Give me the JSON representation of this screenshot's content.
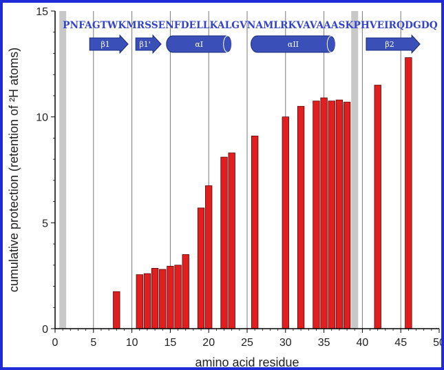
{
  "chart_data": {
    "type": "bar",
    "xlabel": "amino acid residue",
    "ylabel": "cumulative protection (retention of ²H atoms)",
    "xlim": [
      0,
      50
    ],
    "ylim": [
      0,
      15
    ],
    "xticks": [
      0,
      5,
      10,
      15,
      20,
      25,
      30,
      35,
      40,
      45,
      50
    ],
    "yticks": [
      0,
      5,
      10,
      15
    ],
    "grid_x": [
      5,
      10,
      15,
      20,
      25,
      30,
      35,
      40,
      45
    ],
    "shaded_residues": [
      1,
      39
    ],
    "sequence": "PNFAGTWKMRSSENFDELLKALGVNAMLRKVAVAAASKPHVEIRQDGDQ",
    "sequence_start": 1,
    "bar_color": "#e02020",
    "x": [
      8,
      11,
      12,
      13,
      14,
      15,
      16,
      17,
      19,
      20,
      22,
      23,
      26,
      30,
      32,
      34,
      35,
      36,
      37,
      38,
      42,
      46
    ],
    "values": [
      1.75,
      2.55,
      2.6,
      2.85,
      2.8,
      2.95,
      3.0,
      3.5,
      5.7,
      6.75,
      8.1,
      8.3,
      9.1,
      10.0,
      10.5,
      10.75,
      10.9,
      10.75,
      10.8,
      10.7,
      11.5,
      12.8
    ],
    "secondary_structure": [
      {
        "type": "strand",
        "label": "β1",
        "start": 4.5,
        "end": 9.5
      },
      {
        "type": "strand",
        "label": "β1'",
        "start": 10.5,
        "end": 13.8
      },
      {
        "type": "helix",
        "label": "αI",
        "start": 14.5,
        "end": 23
      },
      {
        "type": "helix",
        "label": "αII",
        "start": 25.5,
        "end": 36.5
      },
      {
        "type": "strand",
        "label": "β2",
        "start": 40.5,
        "end": 47.5
      }
    ],
    "ss_color": "#3a50b8"
  }
}
